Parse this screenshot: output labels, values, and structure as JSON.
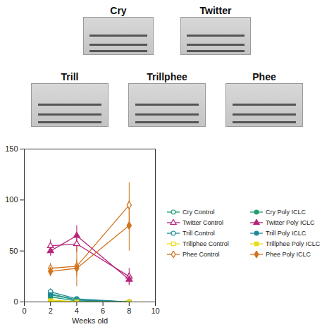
{
  "spectrograms": [
    "Cry",
    "Twitter",
    "Trill",
    "Trillphee",
    "Phee"
  ],
  "chart_data": {
    "type": "line",
    "xlabel": "Weeks old",
    "x": [
      2,
      4,
      8
    ],
    "xlim": [
      0,
      10
    ],
    "xticks": [
      0,
      2,
      4,
      6,
      8,
      10
    ],
    "ylim": [
      0,
      150
    ],
    "yticks": [
      0,
      50,
      100,
      150
    ],
    "legend": "right",
    "series": [
      {
        "name": "Cry Control",
        "color": "#1f9e6e",
        "marker": "circle-open",
        "values": [
          8,
          2,
          0
        ],
        "errors": [
          3,
          1,
          0
        ]
      },
      {
        "name": "Twitter Control",
        "color": "#b5257a",
        "marker": "triangle-open",
        "values": [
          55,
          57,
          25
        ],
        "errors": [
          6,
          8,
          8
        ]
      },
      {
        "name": "Trill Control",
        "color": "#1f8a9a",
        "marker": "circle-open",
        "values": [
          10,
          3,
          0
        ],
        "errors": [
          3,
          1,
          0
        ]
      },
      {
        "name": "Trillphee Control",
        "color": "#e8dc1a",
        "marker": "square-open",
        "values": [
          2,
          0,
          0
        ],
        "errors": [
          1,
          0,
          0
        ]
      },
      {
        "name": "Phee Control",
        "color": "#d2741e",
        "marker": "diamond-open",
        "values": [
          33,
          35,
          95
        ],
        "errors": [
          5,
          20,
          22
        ]
      },
      {
        "name": "Cry Poly ICLC",
        "color": "#1f9e6e",
        "marker": "circle-filled",
        "values": [
          5,
          1,
          0
        ],
        "errors": [
          2,
          1,
          0
        ]
      },
      {
        "name": "Twitter Poly ICLC",
        "color": "#b5257a",
        "marker": "triangle-filled",
        "values": [
          50,
          65,
          22
        ],
        "errors": [
          5,
          10,
          6
        ]
      },
      {
        "name": "Trill Poly ICLC",
        "color": "#1f8a9a",
        "marker": "circle-filled",
        "values": [
          7,
          2,
          0
        ],
        "errors": [
          2,
          1,
          0
        ]
      },
      {
        "name": "Trillphee Poly ICLC",
        "color": "#e8dc1a",
        "marker": "square-filled",
        "values": [
          1,
          0,
          0
        ],
        "errors": [
          1,
          0,
          0
        ]
      },
      {
        "name": "Phee Poly ICLC",
        "color": "#d2741e",
        "marker": "diamond-filled",
        "values": [
          30,
          33,
          75
        ],
        "errors": [
          5,
          8,
          25
        ]
      }
    ]
  }
}
